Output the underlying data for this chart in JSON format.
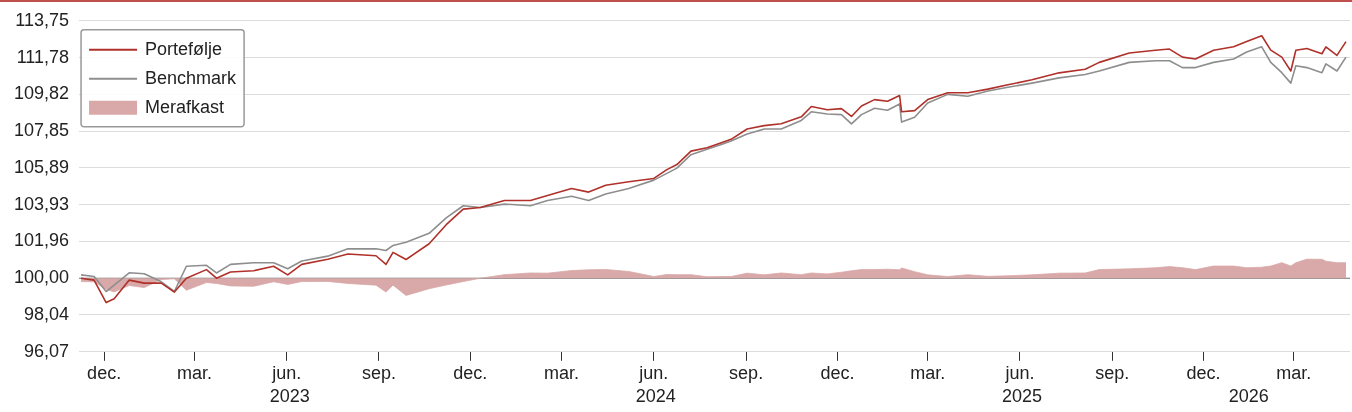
{
  "chart_data": {
    "type": "line",
    "marker": "none",
    "grid": "y",
    "legend": "top left",
    "x": [
      "2022-11-08",
      "2022-11-21",
      "2022-12-03",
      "2022-12-11",
      "2022-12-26",
      "2023-01-10",
      "2023-01-27",
      "2023-02-09",
      "2023-02-21",
      "2023-03-13",
      "2023-03-23",
      "2023-04-06",
      "2023-04-29",
      "2023-05-19",
      "2023-06-02",
      "2023-06-16",
      "2023-07-12",
      "2023-08-01",
      "2023-08-29",
      "2023-09-08",
      "2023-09-15",
      "2023-09-28",
      "2023-10-21",
      "2023-11-07",
      "2023-11-24",
      "2023-12-11",
      "2024-01-04",
      "2024-01-30",
      "2024-02-16",
      "2024-03-11",
      "2024-03-28",
      "2024-04-14",
      "2024-05-07",
      "2024-06-01",
      "2024-06-14",
      "2024-06-24",
      "2024-07-08",
      "2024-07-24",
      "2024-08-08",
      "2024-08-17",
      "2024-09-02",
      "2024-09-19",
      "2024-10-06",
      "2024-10-26",
      "2024-11-05",
      "2024-11-21",
      "2024-12-05",
      "2024-12-15",
      "2024-12-25",
      "2025-01-07",
      "2025-01-20",
      "2025-02-01",
      "2025-02-03",
      "2025-02-16",
      "2025-03-01",
      "2025-03-21",
      "2025-04-10",
      "2025-04-30",
      "2025-05-20",
      "2025-06-13",
      "2025-07-10",
      "2025-08-05",
      "2025-08-19",
      "2025-09-18",
      "2025-10-14",
      "2025-10-28",
      "2025-11-10",
      "2025-11-23",
      "2025-12-11",
      "2025-12-31",
      "2026-01-13",
      "2026-01-28",
      "2026-02-06",
      "2026-02-17",
      "2026-02-26",
      "2026-03-03",
      "2026-03-14",
      "2026-03-29",
      "2026-04-02",
      "2026-04-13",
      "2026-04-22"
    ],
    "series": [
      {
        "name": "Portefølje",
        "type": "line",
        "color": "#b0302a",
        "values": [
          100.0,
          99.9,
          98.7,
          98.9,
          99.9,
          99.74,
          99.74,
          99.26,
          100.0,
          100.46,
          100.0,
          100.33,
          100.4,
          100.64,
          100.18,
          100.74,
          101.01,
          101.29,
          101.2,
          100.74,
          101.38,
          101.0,
          101.84,
          102.86,
          103.69,
          103.78,
          104.15,
          104.15,
          104.42,
          104.79,
          104.6,
          104.97,
          105.15,
          105.33,
          105.8,
          106.07,
          106.79,
          106.97,
          107.25,
          107.42,
          107.97,
          108.15,
          108.25,
          108.62,
          109.17,
          109.0,
          109.06,
          108.64,
          109.2,
          109.54,
          109.45,
          109.76,
          108.89,
          108.95,
          109.54,
          109.91,
          109.91,
          110.1,
          110.33,
          110.6,
          110.97,
          111.16,
          111.53,
          112.03,
          112.18,
          112.24,
          111.81,
          111.71,
          112.18,
          112.36,
          112.64,
          112.95,
          112.18,
          111.81,
          111.07,
          112.18,
          112.27,
          111.99,
          112.36,
          111.9,
          112.64
        ]
      },
      {
        "name": "Benchmark",
        "type": "line",
        "color": "#8e8e8e",
        "values": [
          100.18,
          100.09,
          99.29,
          99.63,
          100.29,
          100.24,
          99.81,
          99.29,
          100.64,
          100.69,
          100.28,
          100.74,
          100.83,
          100.83,
          100.51,
          100.92,
          101.18,
          101.57,
          101.57,
          101.48,
          101.75,
          101.92,
          102.4,
          103.22,
          103.87,
          103.78,
          103.96,
          103.87,
          104.15,
          104.38,
          104.15,
          104.5,
          104.79,
          105.24,
          105.6,
          105.88,
          106.6,
          106.89,
          107.16,
          107.33,
          107.7,
          107.97,
          107.97,
          108.43,
          108.89,
          108.77,
          108.74,
          108.24,
          108.74,
          109.08,
          108.97,
          109.31,
          108.34,
          108.6,
          109.36,
          109.82,
          109.72,
          110.0,
          110.2,
          110.42,
          110.7,
          110.88,
          111.07,
          111.53,
          111.62,
          111.62,
          111.25,
          111.25,
          111.53,
          111.71,
          112.08,
          112.36,
          111.53,
          110.98,
          110.42,
          111.35,
          111.25,
          110.98,
          111.45,
          111.07,
          111.81
        ]
      },
      {
        "name": "Merafkast",
        "type": "area",
        "color": "#d9a8a8",
        "values": [
          99.82,
          99.81,
          99.41,
          99.27,
          99.61,
          99.5,
          99.93,
          99.97,
          99.36,
          99.77,
          99.72,
          99.59,
          99.57,
          99.81,
          99.67,
          99.82,
          99.83,
          99.72,
          99.63,
          99.26,
          99.63,
          99.08,
          99.44,
          99.64,
          99.82,
          100.0,
          100.19,
          100.28,
          100.27,
          100.41,
          100.45,
          100.47,
          100.36,
          100.09,
          100.2,
          100.19,
          100.19,
          100.08,
          100.09,
          100.09,
          100.27,
          100.18,
          100.28,
          100.19,
          100.28,
          100.23,
          100.32,
          100.4,
          100.46,
          100.46,
          100.48,
          100.45,
          100.55,
          100.35,
          100.18,
          100.09,
          100.19,
          100.1,
          100.13,
          100.18,
          100.27,
          100.28,
          100.46,
          100.5,
          100.56,
          100.62,
          100.56,
          100.46,
          100.65,
          100.65,
          100.56,
          100.59,
          100.65,
          100.83,
          100.65,
          100.83,
          101.02,
          101.01,
          100.91,
          100.83,
          100.83
        ]
      }
    ],
    "ref_lines": [
      {
        "axis": "y",
        "value": 100.0,
        "color": "#777777"
      }
    ],
    "ylim": [
      96.07,
      113.75
    ],
    "yticks": [
      {
        "value": 96.07,
        "label": "96,07"
      },
      {
        "value": 98.04,
        "label": "98,04"
      },
      {
        "value": 100,
        "label": "100,00"
      },
      {
        "value": 101.96,
        "label": "101,96"
      },
      {
        "value": 103.93,
        "label": "103,93"
      },
      {
        "value": 105.89,
        "label": "105,89"
      },
      {
        "value": 107.85,
        "label": "107,85"
      },
      {
        "value": 109.82,
        "label": "109,82"
      },
      {
        "value": 111.78,
        "label": "111,78"
      },
      {
        "value": 113.75,
        "label": "113,75"
      }
    ],
    "xlim": [
      "2022-11-06",
      "2026-04-26"
    ],
    "xticks": [
      {
        "value": "2022-12-01",
        "label": "dec."
      },
      {
        "value": "2023-03-01",
        "label": "mar."
      },
      {
        "value": "2023-06-01",
        "label": "jun."
      },
      {
        "value": "2023-09-01",
        "label": "sep."
      },
      {
        "value": "2023-12-01",
        "label": "dec."
      },
      {
        "value": "2024-03-01",
        "label": "mar."
      },
      {
        "value": "2024-06-01",
        "label": "jun."
      },
      {
        "value": "2024-09-01",
        "label": "sep."
      },
      {
        "value": "2024-12-01",
        "label": "dec."
      },
      {
        "value": "2025-03-01",
        "label": "mar."
      },
      {
        "value": "2025-06-01",
        "label": "jun."
      },
      {
        "value": "2025-09-01",
        "label": "sep."
      },
      {
        "value": "2025-12-01",
        "label": "dec."
      },
      {
        "value": "2026-03-01",
        "label": "mar."
      }
    ],
    "x2lim": [
      "2022-11-06",
      "2026-04-26"
    ],
    "x2ticks": [
      {
        "value": "2023-06-04",
        "label": "2023"
      },
      {
        "value": "2024-06-03",
        "label": "2024"
      },
      {
        "value": "2025-06-03",
        "label": "2025"
      },
      {
        "value": "2026-01-15",
        "label": "2026"
      }
    ]
  }
}
